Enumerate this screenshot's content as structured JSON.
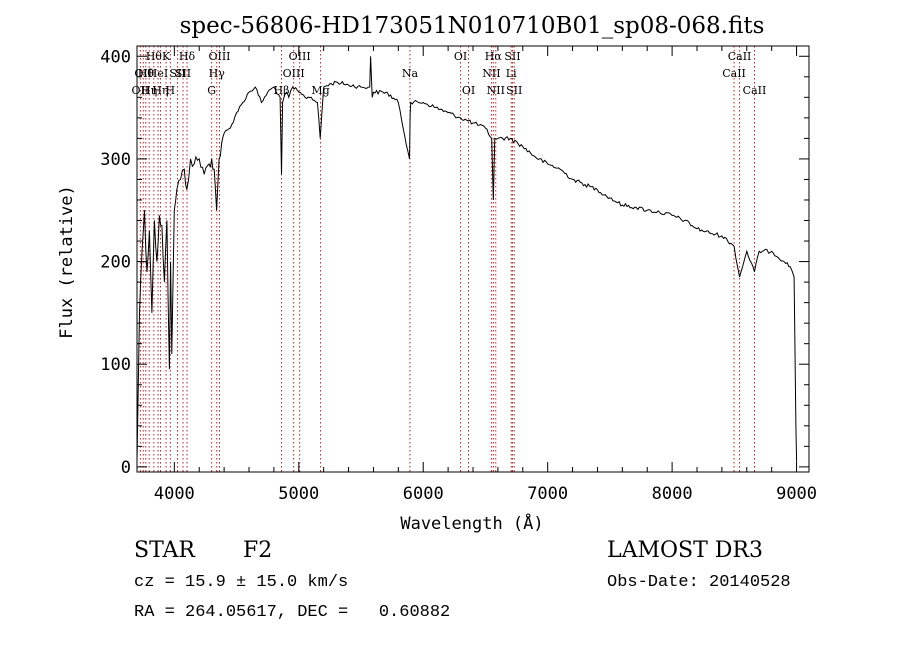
{
  "chart_data": {
    "type": "line",
    "title": "spec-56806-HD173051N010710B01_sp08-068.fits",
    "xlabel": "Wavelength (Å)",
    "ylabel": "Flux (relative)",
    "xlim": [
      3700,
      9100
    ],
    "ylim": [
      -5,
      410
    ],
    "xticks": [
      4000,
      5000,
      6000,
      7000,
      8000,
      9000
    ],
    "yticks": [
      0,
      100,
      200,
      300,
      400
    ],
    "grid": false,
    "series": [
      {
        "name": "spectrum",
        "x": [
          3700,
          3720,
          3740,
          3760,
          3780,
          3800,
          3820,
          3840,
          3860,
          3880,
          3900,
          3920,
          3940,
          3960,
          3970,
          3980,
          4000,
          4020,
          4050,
          4080,
          4100,
          4130,
          4160,
          4200,
          4240,
          4280,
          4300,
          4320,
          4340,
          4360,
          4380,
          4400,
          4450,
          4500,
          4550,
          4600,
          4650,
          4700,
          4750,
          4800,
          4850,
          4861,
          4870,
          4900,
          4920,
          4950,
          5000,
          5050,
          5100,
          5150,
          5172,
          5200,
          5300,
          5400,
          5500,
          5570,
          5577,
          5590,
          5600,
          5700,
          5800,
          5890,
          5895,
          5900,
          6000,
          6100,
          6200,
          6300,
          6400,
          6500,
          6550,
          6563,
          6575,
          6600,
          6700,
          6800,
          6900,
          7000,
          7100,
          7200,
          7300,
          7400,
          7500,
          7600,
          7700,
          7800,
          7900,
          8000,
          8100,
          8200,
          8300,
          8400,
          8498,
          8542,
          8600,
          8662,
          8700,
          8800,
          8900,
          8950,
          8980,
          8995,
          9000
        ],
        "y": [
          5,
          150,
          210,
          250,
          190,
          230,
          150,
          240,
          200,
          245,
          235,
          180,
          240,
          95,
          200,
          110,
          250,
          270,
          280,
          290,
          270,
          300,
          295,
          300,
          285,
          295,
          300,
          290,
          250,
          300,
          315,
          325,
          330,
          345,
          355,
          365,
          370,
          355,
          365,
          370,
          360,
          285,
          355,
          365,
          360,
          370,
          365,
          360,
          360,
          355,
          320,
          370,
          375,
          372,
          370,
          370,
          400,
          360,
          365,
          365,
          355,
          300,
          345,
          355,
          355,
          350,
          345,
          340,
          335,
          330,
          320,
          260,
          320,
          320,
          320,
          312,
          302,
          295,
          290,
          280,
          275,
          270,
          262,
          255,
          253,
          250,
          248,
          245,
          240,
          232,
          228,
          225,
          215,
          185,
          210,
          190,
          210,
          210,
          200,
          195,
          185,
          40,
          5
        ]
      }
    ],
    "line_markers": [
      {
        "x": 3727,
        "row": 2,
        "label": "OII"
      },
      {
        "x": 3750,
        "row": 1,
        "label": "OII"
      },
      {
        "x": 3771,
        "row": 1,
        "label": "Hθ"
      },
      {
        "x": 3798,
        "row": 2,
        "label": "Hη"
      },
      {
        "x": 3835,
        "row": 0,
        "label": "Hθ"
      },
      {
        "x": 3869,
        "row": 1,
        "label": "HeI"
      },
      {
        "x": 3889,
        "row": 2,
        "label": "Hη"
      },
      {
        "x": 3934,
        "row": 0,
        "label": "K"
      },
      {
        "x": 3968,
        "row": 2,
        "label": "H"
      },
      {
        "x": 4026,
        "row": 1,
        "label": "SII"
      },
      {
        "x": 4070,
        "row": 1,
        "label": "SII"
      },
      {
        "x": 4102,
        "row": 0,
        "label": "Hδ"
      },
      {
        "x": 4300,
        "row": 2,
        "label": "G"
      },
      {
        "x": 4341,
        "row": 1,
        "label": "Hγ"
      },
      {
        "x": 4363,
        "row": 0,
        "label": "OIII"
      },
      {
        "x": 4861,
        "row": 2,
        "label": "Hβ"
      },
      {
        "x": 4959,
        "row": 1,
        "label": "OIII"
      },
      {
        "x": 5007,
        "row": 0,
        "label": "OIII"
      },
      {
        "x": 5175,
        "row": 2,
        "label": "Mg"
      },
      {
        "x": 5893,
        "row": 1,
        "label": "Na"
      },
      {
        "x": 6300,
        "row": 0,
        "label": "OI"
      },
      {
        "x": 6364,
        "row": 2,
        "label": "OI"
      },
      {
        "x": 6548,
        "row": 1,
        "label": "NII"
      },
      {
        "x": 6563,
        "row": 0,
        "label": "Hα"
      },
      {
        "x": 6583,
        "row": 2,
        "label": "NII"
      },
      {
        "x": 6707,
        "row": 1,
        "label": "Li"
      },
      {
        "x": 6717,
        "row": 0,
        "label": "SII"
      },
      {
        "x": 6731,
        "row": 2,
        "label": "SII"
      },
      {
        "x": 8498,
        "row": 1,
        "label": "CaII"
      },
      {
        "x": 8542,
        "row": 0,
        "label": "CaII"
      },
      {
        "x": 8662,
        "row": 2,
        "label": "CaII"
      }
    ]
  },
  "info": {
    "class_label": "STAR",
    "subclass": "F2",
    "cz_text": "cz = 15.9 ± 15.0 km/s",
    "coords_text": "RA = 264.05617, DEC =   0.60882",
    "survey": "LAMOST DR3",
    "obs_date": "Obs-Date: 20140528"
  },
  "colors": {
    "ink": "#000000",
    "marker": "#b22222",
    "background": "#ffffff"
  }
}
